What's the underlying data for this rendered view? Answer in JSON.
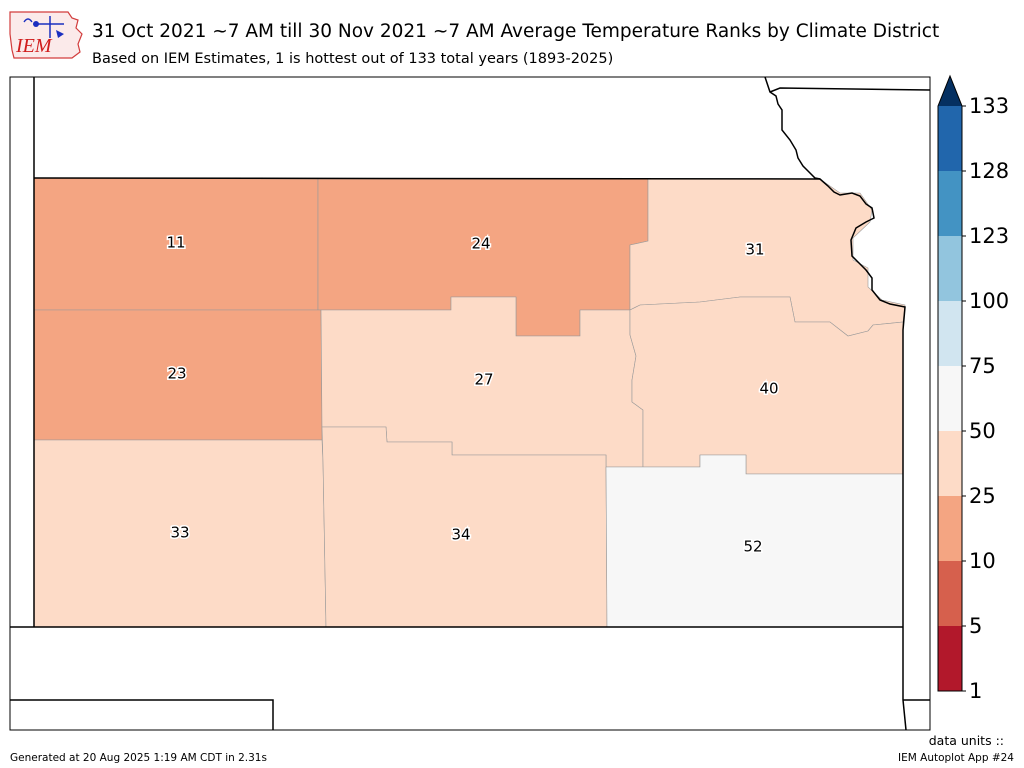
{
  "header": {
    "logo_text": "IEM",
    "title": "31 Oct 2021 ~7 AM till 30 Nov 2021 ~7 AM Average Temperature Ranks by Climate District",
    "subtitle": "Based on IEM Estimates, 1 is hottest out of 133 total years (1893-2025)"
  },
  "colors": {
    "rank_1_5": "#b2182b",
    "rank_5_10": "#d6604d",
    "rank_10_25": "#f4a582",
    "rank_25_50": "#fddbc7",
    "rank_50_75": "#f7f7f7",
    "rank_75_100": "#d1e5f0",
    "rank_100_123": "#92c5de",
    "rank_123_128": "#4393c3",
    "rank_128_133": "#2166ac",
    "rank_over_133": "#053061"
  },
  "districts": [
    {
      "id": "northwest",
      "rank": "11"
    },
    {
      "id": "north-central",
      "rank": "24"
    },
    {
      "id": "northeast",
      "rank": "31"
    },
    {
      "id": "west-central",
      "rank": "23"
    },
    {
      "id": "central",
      "rank": "27"
    },
    {
      "id": "east-central",
      "rank": "40"
    },
    {
      "id": "southwest",
      "rank": "33"
    },
    {
      "id": "south-central",
      "rank": "34"
    },
    {
      "id": "southeast",
      "rank": "52"
    }
  ],
  "colorbar": {
    "ticks": [
      "133",
      "128",
      "123",
      "100",
      "75",
      "50",
      "25",
      "10",
      "5",
      "1"
    ]
  },
  "footer": {
    "generated": "Generated at 20 Aug 2025 1:19 AM CDT in 2.31s",
    "units": "data units ::",
    "app": "IEM Autoplot App #24"
  }
}
